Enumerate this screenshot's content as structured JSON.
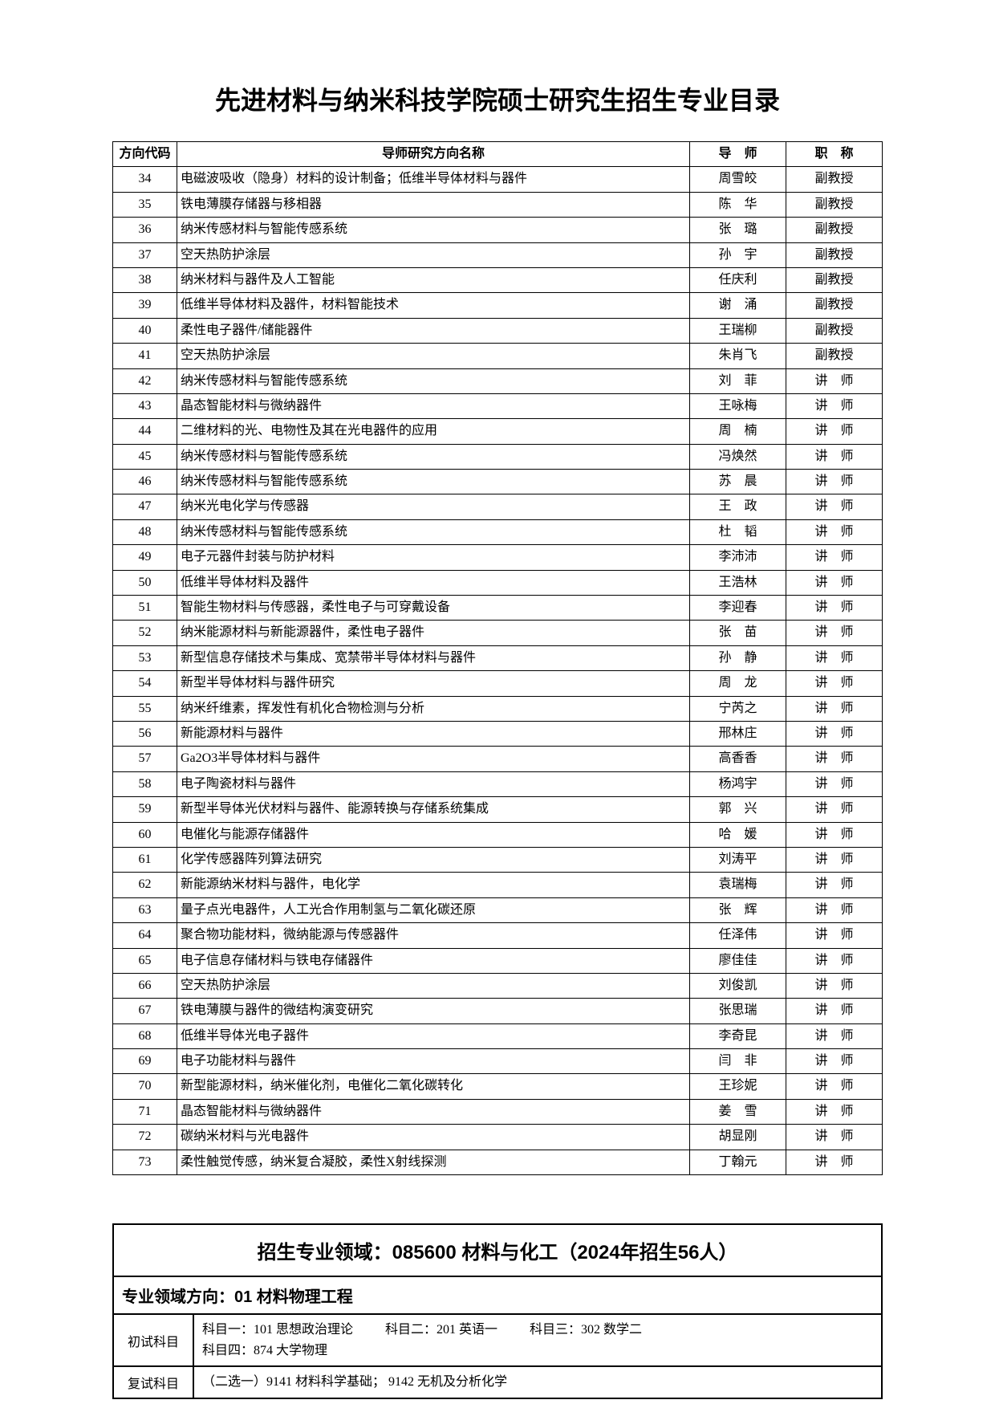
{
  "page": {
    "title": "先进材料与纳米科技学院硕士研究生招生专业目录",
    "background_color": "#ffffff",
    "text_color": "#000000",
    "border_color": "#000000"
  },
  "table": {
    "headers": {
      "code": "方向代码",
      "research": "导师研究方向名称",
      "advisor": "导　师",
      "jobtitle": "职　称"
    },
    "rows": [
      {
        "code": "34",
        "research": "电磁波吸收（隐身）材料的设计制备；低维半导体材料与器件",
        "advisor": "周雪皎",
        "title": "副教授"
      },
      {
        "code": "35",
        "research": "铁电薄膜存储器与移相器",
        "advisor": "陈　华",
        "title": "副教授"
      },
      {
        "code": "36",
        "research": "纳米传感材料与智能传感系统",
        "advisor": "张　璐",
        "title": "副教授"
      },
      {
        "code": "37",
        "research": "空天热防护涂层",
        "advisor": "孙　宇",
        "title": "副教授"
      },
      {
        "code": "38",
        "research": "纳米材料与器件及人工智能",
        "advisor": "任庆利",
        "title": "副教授"
      },
      {
        "code": "39",
        "research": "低维半导体材料及器件，材料智能技术",
        "advisor": "谢　涌",
        "title": "副教授"
      },
      {
        "code": "40",
        "research": "柔性电子器件/储能器件",
        "advisor": "王瑞柳",
        "title": "副教授"
      },
      {
        "code": "41",
        "research": "空天热防护涂层",
        "advisor": "朱肖飞",
        "title": "副教授"
      },
      {
        "code": "42",
        "research": "纳米传感材料与智能传感系统",
        "advisor": "刘　菲",
        "title": "讲　师"
      },
      {
        "code": "43",
        "research": "晶态智能材料与微纳器件",
        "advisor": "王咏梅",
        "title": "讲　师"
      },
      {
        "code": "44",
        "research": "二维材料的光、电物性及其在光电器件的应用",
        "advisor": "周　楠",
        "title": "讲　师"
      },
      {
        "code": "45",
        "research": "纳米传感材料与智能传感系统",
        "advisor": "冯焕然",
        "title": "讲　师"
      },
      {
        "code": "46",
        "research": "纳米传感材料与智能传感系统",
        "advisor": "苏　晨",
        "title": "讲　师"
      },
      {
        "code": "47",
        "research": "纳米光电化学与传感器",
        "advisor": "王　政",
        "title": "讲　师"
      },
      {
        "code": "48",
        "research": "纳米传感材料与智能传感系统",
        "advisor": "杜　韬",
        "title": "讲　师"
      },
      {
        "code": "49",
        "research": "电子元器件封装与防护材料",
        "advisor": "李沛沛",
        "title": "讲　师"
      },
      {
        "code": "50",
        "research": "低维半导体材料及器件",
        "advisor": "王浩林",
        "title": "讲　师"
      },
      {
        "code": "51",
        "research": "智能生物材料与传感器，柔性电子与可穿戴设备",
        "advisor": "李迎春",
        "title": "讲　师"
      },
      {
        "code": "52",
        "research": "纳米能源材料与新能源器件，柔性电子器件",
        "advisor": "张　苗",
        "title": "讲　师"
      },
      {
        "code": "53",
        "research": "新型信息存储技术与集成、宽禁带半导体材料与器件",
        "advisor": "孙　静",
        "title": "讲　师"
      },
      {
        "code": "54",
        "research": "新型半导体材料与器件研究",
        "advisor": "周　龙",
        "title": "讲　师"
      },
      {
        "code": "55",
        "research": "纳米纤维素，挥发性有机化合物检测与分析",
        "advisor": "宁芮之",
        "title": "讲　师"
      },
      {
        "code": "56",
        "research": "新能源材料与器件",
        "advisor": "邢林庄",
        "title": "讲　师"
      },
      {
        "code": "57",
        "research": "Ga2O3半导体材料与器件",
        "advisor": "高香香",
        "title": "讲　师"
      },
      {
        "code": "58",
        "research": "电子陶瓷材料与器件",
        "advisor": "杨鸿宇",
        "title": "讲　师"
      },
      {
        "code": "59",
        "research": "新型半导体光伏材料与器件、能源转换与存储系统集成",
        "advisor": "郭　兴",
        "title": "讲　师"
      },
      {
        "code": "60",
        "research": "电催化与能源存储器件",
        "advisor": "哈　媛",
        "title": "讲　师"
      },
      {
        "code": "61",
        "research": "化学传感器阵列算法研究",
        "advisor": "刘涛平",
        "title": "讲　师"
      },
      {
        "code": "62",
        "research": "新能源纳米材料与器件，电化学",
        "advisor": "袁瑞梅",
        "title": "讲　师"
      },
      {
        "code": "63",
        "research": "量子点光电器件，人工光合作用制氢与二氧化碳还原",
        "advisor": "张　辉",
        "title": "讲　师"
      },
      {
        "code": "64",
        "research": "聚合物功能材料，微纳能源与传感器件",
        "advisor": "任泽伟",
        "title": "讲　师"
      },
      {
        "code": "65",
        "research": "电子信息存储材料与铁电存储器件",
        "advisor": "廖佳佳",
        "title": "讲　师"
      },
      {
        "code": "66",
        "research": "空天热防护涂层",
        "advisor": "刘俊凯",
        "title": "讲　师"
      },
      {
        "code": "67",
        "research": "铁电薄膜与器件的微结构演变研究",
        "advisor": "张思瑞",
        "title": "讲　师"
      },
      {
        "code": "68",
        "research": "低维半导体光电子器件",
        "advisor": "李奇昆",
        "title": "讲　师"
      },
      {
        "code": "69",
        "research": "电子功能材料与器件",
        "advisor": "闫　非",
        "title": "讲　师"
      },
      {
        "code": "70",
        "research": "新型能源材料，纳米催化剂，电催化二氧化碳转化",
        "advisor": "王珍妮",
        "title": "讲　师"
      },
      {
        "code": "71",
        "research": "晶态智能材料与微纳器件",
        "advisor": "姜　雪",
        "title": "讲　师"
      },
      {
        "code": "72",
        "research": "碳纳米材料与光电器件",
        "advisor": "胡显刚",
        "title": "讲　师"
      },
      {
        "code": "73",
        "research": "柔性触觉传感，纳米复合凝胶，柔性X射线探测",
        "advisor": "丁翰元",
        "title": "讲　师"
      }
    ]
  },
  "section": {
    "header": "招生专业领域：085600 材料与化工（2024年招生56人）",
    "sub": "专业领域方向：01 材料物理工程",
    "prelim_label": "初试科目",
    "prelim": {
      "s1": "科目一：101 思想政治理论",
      "s2": "科目二：201 英语一",
      "s3": "科目三：302 数学二",
      "s4": "科目四：874 大学物理"
    },
    "retest_label": "复试科目",
    "retest": "（二选一）9141 材料科学基础； 9142 无机及分析化学"
  }
}
